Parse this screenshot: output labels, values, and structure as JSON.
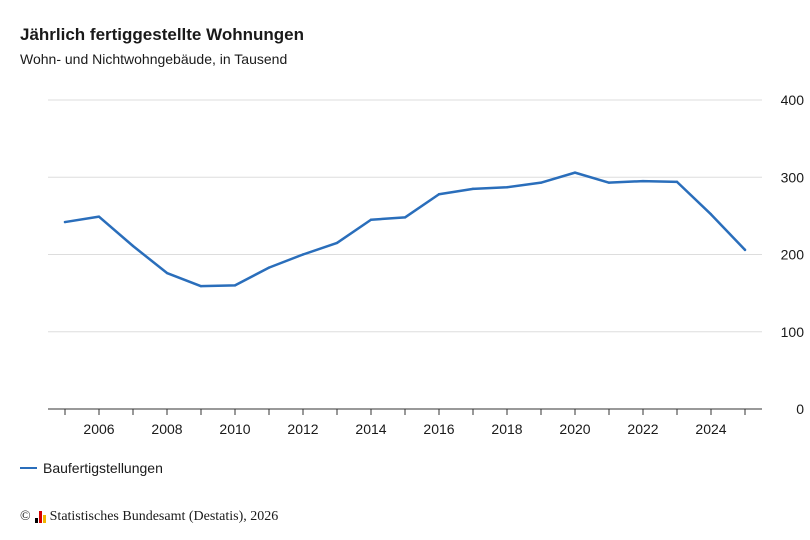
{
  "header": {
    "title": "Jährlich fertiggestellte Wohnungen",
    "subtitle": "Wohn- und Nichtwohngebäude, in Tausend"
  },
  "legend": {
    "label": "Baufertigstellungen"
  },
  "footer": {
    "copyright": "©",
    "source": "Statistisches Bundesamt (Destatis), 2026"
  },
  "colors": {
    "series": "#2a6ebb",
    "grid": "#dddddd",
    "axis": "#333333"
  },
  "chart_data": {
    "type": "line",
    "title": "Jährlich fertiggestellte Wohnungen",
    "subtitle": "Wohn- und Nichtwohngebäude, in Tausend",
    "xlabel": "",
    "ylabel": "",
    "x": [
      2005,
      2006,
      2007,
      2008,
      2009,
      2010,
      2011,
      2012,
      2013,
      2014,
      2015,
      2016,
      2017,
      2018,
      2019,
      2020,
      2021,
      2022,
      2023,
      2024,
      2025
    ],
    "series": [
      {
        "name": "Baufertigstellungen",
        "values": [
          242,
          249,
          211,
          176,
          159,
          160,
          183,
          200,
          215,
          245,
          248,
          278,
          285,
          287,
          293,
          306,
          293,
          295,
          294,
          252,
          206
        ]
      }
    ],
    "ylim": [
      0,
      400
    ],
    "yticks": [
      0,
      100,
      200,
      300,
      400
    ],
    "xticks": [
      2006,
      2008,
      2010,
      2012,
      2014,
      2016,
      2018,
      2020,
      2022,
      2024
    ],
    "xlim": [
      2004.5,
      2025.5
    ],
    "grid": true,
    "y_axis_side": "right",
    "legend_position": "bottom-left"
  }
}
